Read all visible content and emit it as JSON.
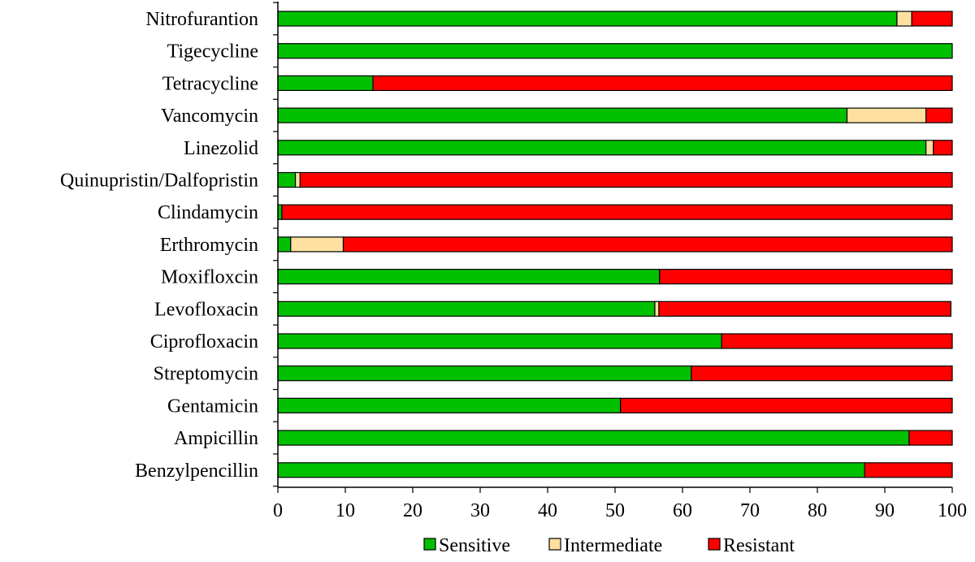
{
  "chart_data": {
    "type": "bar",
    "orientation": "horizontal",
    "stacked": true,
    "categories": [
      "Nitrofurantion",
      "Tigecycline",
      "Tetracycline",
      "Vancomycin",
      "Linezolid",
      "Quinupristin/Dalfopristin",
      "Clindamycin",
      "Erthromycin",
      "Moxifloxcin",
      "Levofloxacin",
      "Ciprofloxacin",
      "Streptomycin",
      "Gentamicin",
      "Ampicillin",
      "Benzylpencillin"
    ],
    "series": [
      {
        "name": "Sensitive",
        "color": "#00C000",
        "values": [
          91.8,
          100,
          14.1,
          84.4,
          96.1,
          2.6,
          0.6,
          1.9,
          56.6,
          55.9,
          65.8,
          61.3,
          50.8,
          93.6,
          87.0
        ]
      },
      {
        "name": "Intermediate",
        "color": "#FFE0A0",
        "values": [
          2.2,
          0,
          0,
          11.7,
          1.1,
          0.7,
          0,
          7.8,
          0,
          0.6,
          0,
          0,
          0,
          0,
          0
        ]
      },
      {
        "name": "Resistant",
        "color": "#FF0000",
        "values": [
          6.0,
          0,
          85.9,
          3.9,
          2.8,
          96.7,
          99.4,
          90.3,
          43.4,
          43.3,
          34.2,
          38.7,
          49.2,
          6.4,
          13.0
        ]
      }
    ],
    "xlim": [
      0,
      100
    ],
    "xticks": [
      "0",
      "10",
      "20",
      "30",
      "40",
      "50",
      "60",
      "70",
      "80",
      "90",
      "100"
    ],
    "title": "",
    "xlabel": "",
    "ylabel": "",
    "grid": false,
    "legend_position": "bottom"
  }
}
